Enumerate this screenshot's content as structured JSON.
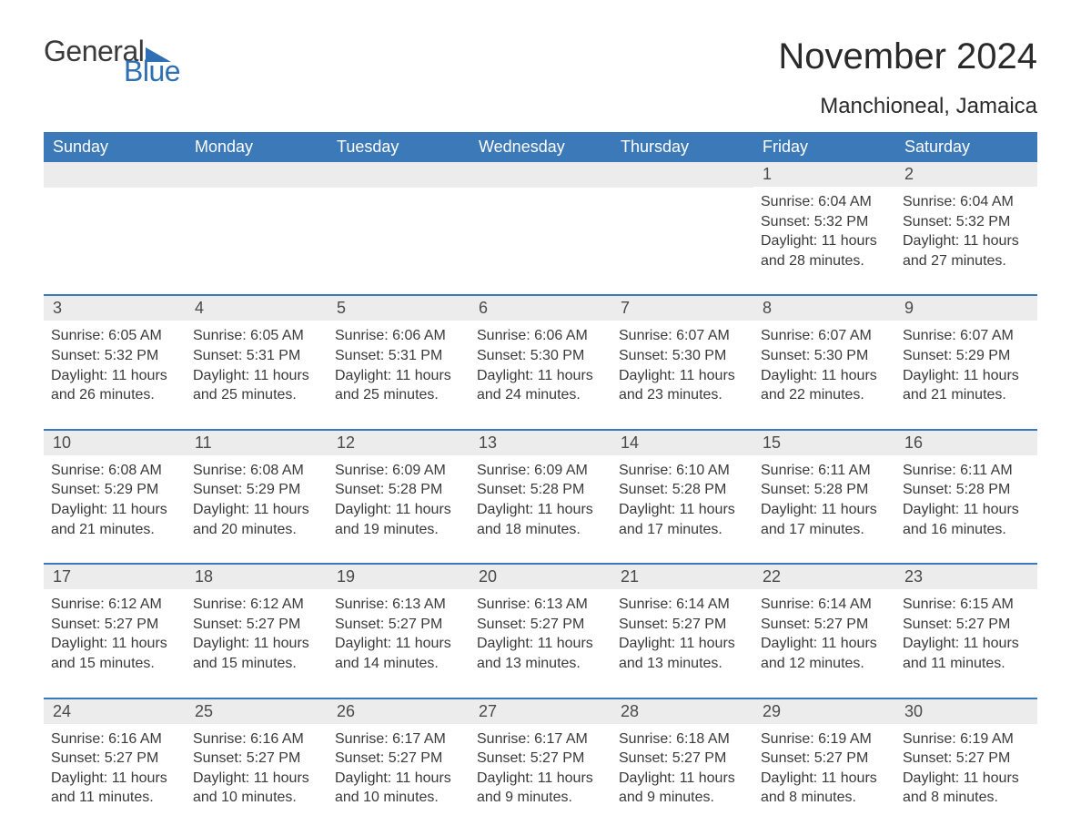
{
  "logo": {
    "text1": "General",
    "text2": "Blue",
    "color_text": "#3a3a3a",
    "color_blue": "#2f6fb3"
  },
  "title": "November 2024",
  "location": "Manchioneal, Jamaica",
  "colors": {
    "header_bg": "#3b79b8",
    "header_text": "#ffffff",
    "row_border": "#3b79b8",
    "daynum_bg": "#ececec",
    "body_text": "#3a3a3a",
    "page_bg": "#ffffff"
  },
  "fonts": {
    "title_size": 40,
    "location_size": 24,
    "dow_size": 18,
    "daynum_size": 18,
    "body_size": 16,
    "family": "Arial"
  },
  "days_of_week": [
    "Sunday",
    "Monday",
    "Tuesday",
    "Wednesday",
    "Thursday",
    "Friday",
    "Saturday"
  ],
  "weeks": [
    [
      null,
      null,
      null,
      null,
      null,
      {
        "n": "1",
        "sunrise": "Sunrise: 6:04 AM",
        "sunset": "Sunset: 5:32 PM",
        "d1": "Daylight: 11 hours",
        "d2": "and 28 minutes."
      },
      {
        "n": "2",
        "sunrise": "Sunrise: 6:04 AM",
        "sunset": "Sunset: 5:32 PM",
        "d1": "Daylight: 11 hours",
        "d2": "and 27 minutes."
      }
    ],
    [
      {
        "n": "3",
        "sunrise": "Sunrise: 6:05 AM",
        "sunset": "Sunset: 5:32 PM",
        "d1": "Daylight: 11 hours",
        "d2": "and 26 minutes."
      },
      {
        "n": "4",
        "sunrise": "Sunrise: 6:05 AM",
        "sunset": "Sunset: 5:31 PM",
        "d1": "Daylight: 11 hours",
        "d2": "and 25 minutes."
      },
      {
        "n": "5",
        "sunrise": "Sunrise: 6:06 AM",
        "sunset": "Sunset: 5:31 PM",
        "d1": "Daylight: 11 hours",
        "d2": "and 25 minutes."
      },
      {
        "n": "6",
        "sunrise": "Sunrise: 6:06 AM",
        "sunset": "Sunset: 5:30 PM",
        "d1": "Daylight: 11 hours",
        "d2": "and 24 minutes."
      },
      {
        "n": "7",
        "sunrise": "Sunrise: 6:07 AM",
        "sunset": "Sunset: 5:30 PM",
        "d1": "Daylight: 11 hours",
        "d2": "and 23 minutes."
      },
      {
        "n": "8",
        "sunrise": "Sunrise: 6:07 AM",
        "sunset": "Sunset: 5:30 PM",
        "d1": "Daylight: 11 hours",
        "d2": "and 22 minutes."
      },
      {
        "n": "9",
        "sunrise": "Sunrise: 6:07 AM",
        "sunset": "Sunset: 5:29 PM",
        "d1": "Daylight: 11 hours",
        "d2": "and 21 minutes."
      }
    ],
    [
      {
        "n": "10",
        "sunrise": "Sunrise: 6:08 AM",
        "sunset": "Sunset: 5:29 PM",
        "d1": "Daylight: 11 hours",
        "d2": "and 21 minutes."
      },
      {
        "n": "11",
        "sunrise": "Sunrise: 6:08 AM",
        "sunset": "Sunset: 5:29 PM",
        "d1": "Daylight: 11 hours",
        "d2": "and 20 minutes."
      },
      {
        "n": "12",
        "sunrise": "Sunrise: 6:09 AM",
        "sunset": "Sunset: 5:28 PM",
        "d1": "Daylight: 11 hours",
        "d2": "and 19 minutes."
      },
      {
        "n": "13",
        "sunrise": "Sunrise: 6:09 AM",
        "sunset": "Sunset: 5:28 PM",
        "d1": "Daylight: 11 hours",
        "d2": "and 18 minutes."
      },
      {
        "n": "14",
        "sunrise": "Sunrise: 6:10 AM",
        "sunset": "Sunset: 5:28 PM",
        "d1": "Daylight: 11 hours",
        "d2": "and 17 minutes."
      },
      {
        "n": "15",
        "sunrise": "Sunrise: 6:11 AM",
        "sunset": "Sunset: 5:28 PM",
        "d1": "Daylight: 11 hours",
        "d2": "and 17 minutes."
      },
      {
        "n": "16",
        "sunrise": "Sunrise: 6:11 AM",
        "sunset": "Sunset: 5:28 PM",
        "d1": "Daylight: 11 hours",
        "d2": "and 16 minutes."
      }
    ],
    [
      {
        "n": "17",
        "sunrise": "Sunrise: 6:12 AM",
        "sunset": "Sunset: 5:27 PM",
        "d1": "Daylight: 11 hours",
        "d2": "and 15 minutes."
      },
      {
        "n": "18",
        "sunrise": "Sunrise: 6:12 AM",
        "sunset": "Sunset: 5:27 PM",
        "d1": "Daylight: 11 hours",
        "d2": "and 15 minutes."
      },
      {
        "n": "19",
        "sunrise": "Sunrise: 6:13 AM",
        "sunset": "Sunset: 5:27 PM",
        "d1": "Daylight: 11 hours",
        "d2": "and 14 minutes."
      },
      {
        "n": "20",
        "sunrise": "Sunrise: 6:13 AM",
        "sunset": "Sunset: 5:27 PM",
        "d1": "Daylight: 11 hours",
        "d2": "and 13 minutes."
      },
      {
        "n": "21",
        "sunrise": "Sunrise: 6:14 AM",
        "sunset": "Sunset: 5:27 PM",
        "d1": "Daylight: 11 hours",
        "d2": "and 13 minutes."
      },
      {
        "n": "22",
        "sunrise": "Sunrise: 6:14 AM",
        "sunset": "Sunset: 5:27 PM",
        "d1": "Daylight: 11 hours",
        "d2": "and 12 minutes."
      },
      {
        "n": "23",
        "sunrise": "Sunrise: 6:15 AM",
        "sunset": "Sunset: 5:27 PM",
        "d1": "Daylight: 11 hours",
        "d2": "and 11 minutes."
      }
    ],
    [
      {
        "n": "24",
        "sunrise": "Sunrise: 6:16 AM",
        "sunset": "Sunset: 5:27 PM",
        "d1": "Daylight: 11 hours",
        "d2": "and 11 minutes."
      },
      {
        "n": "25",
        "sunrise": "Sunrise: 6:16 AM",
        "sunset": "Sunset: 5:27 PM",
        "d1": "Daylight: 11 hours",
        "d2": "and 10 minutes."
      },
      {
        "n": "26",
        "sunrise": "Sunrise: 6:17 AM",
        "sunset": "Sunset: 5:27 PM",
        "d1": "Daylight: 11 hours",
        "d2": "and 10 minutes."
      },
      {
        "n": "27",
        "sunrise": "Sunrise: 6:17 AM",
        "sunset": "Sunset: 5:27 PM",
        "d1": "Daylight: 11 hours",
        "d2": "and 9 minutes."
      },
      {
        "n": "28",
        "sunrise": "Sunrise: 6:18 AM",
        "sunset": "Sunset: 5:27 PM",
        "d1": "Daylight: 11 hours",
        "d2": "and 9 minutes."
      },
      {
        "n": "29",
        "sunrise": "Sunrise: 6:19 AM",
        "sunset": "Sunset: 5:27 PM",
        "d1": "Daylight: 11 hours",
        "d2": "and 8 minutes."
      },
      {
        "n": "30",
        "sunrise": "Sunrise: 6:19 AM",
        "sunset": "Sunset: 5:27 PM",
        "d1": "Daylight: 11 hours",
        "d2": "and 8 minutes."
      }
    ]
  ]
}
